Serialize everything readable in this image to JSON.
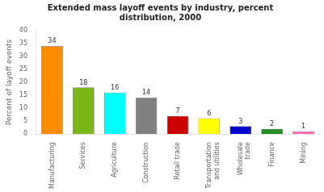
{
  "chart_data": {
    "type": "bar",
    "title": "Extended mass layoff events by industry, percent\ndistribution, 2000",
    "ylabel": "Percent of layoff events",
    "categories": [
      "Manufacturing",
      "Services",
      "Agriculture",
      "Construction",
      "Retail trade",
      "Transportation\nand utilities",
      "Wholesale\ntrade",
      "Finance",
      "Mining"
    ],
    "values": [
      34,
      18,
      16,
      14,
      7,
      6,
      3,
      2,
      1
    ],
    "colors": [
      "#FF8C00",
      "#7CB518",
      "#00FFFF",
      "#808080",
      "#CC0000",
      "#FFFF00",
      "#0000CD",
      "#228B22",
      "#FF69B4"
    ],
    "ylim": [
      0,
      40
    ],
    "yticks": [
      0,
      5,
      10,
      15,
      20,
      25,
      30,
      35,
      40
    ],
    "grid": false,
    "data_labels": true
  }
}
